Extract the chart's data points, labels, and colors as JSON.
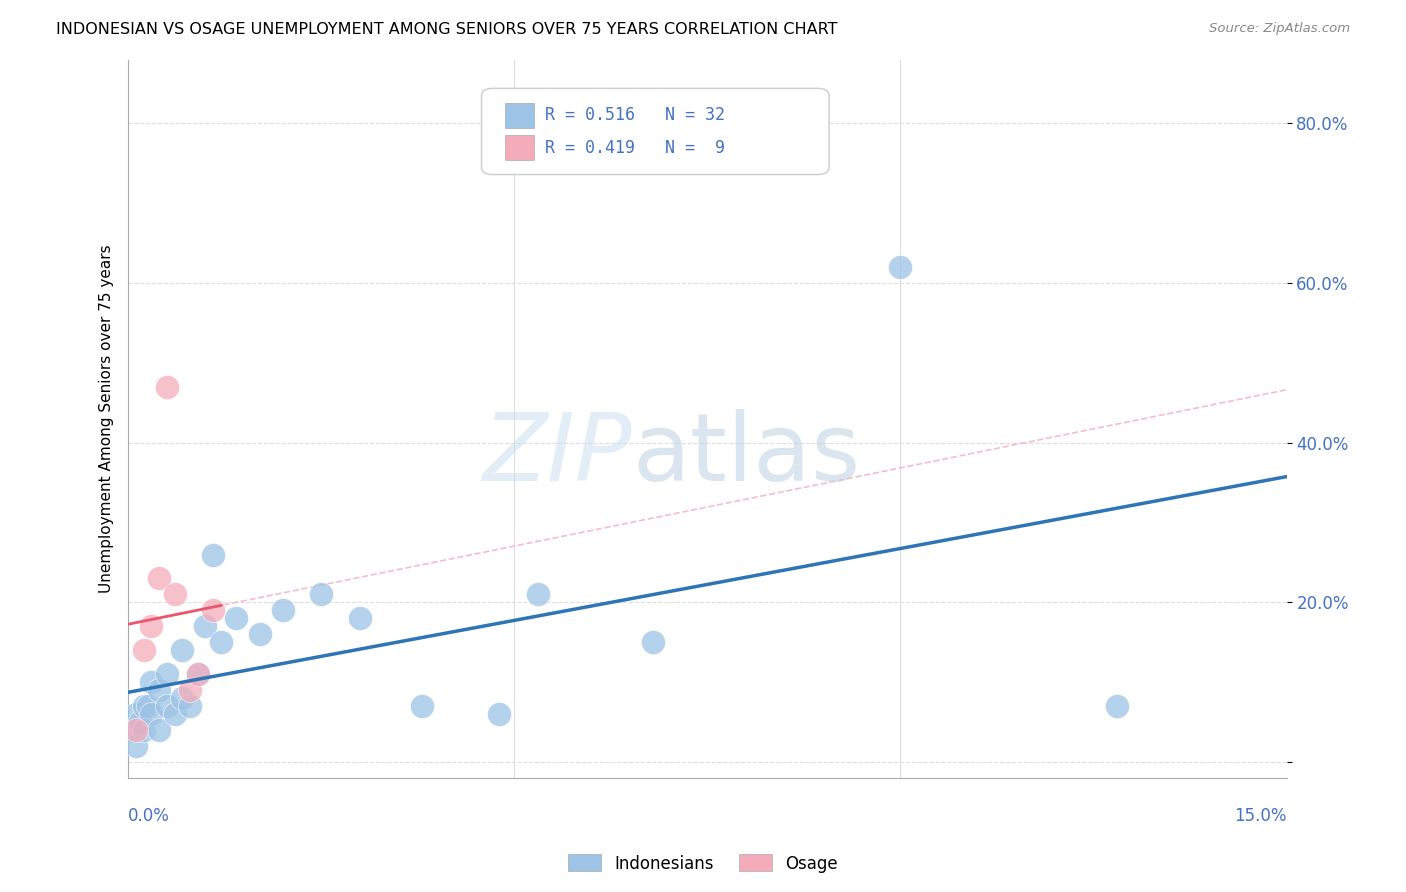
{
  "title": "INDONESIAN VS OSAGE UNEMPLOYMENT AMONG SENIORS OVER 75 YEARS CORRELATION CHART",
  "source": "Source: ZipAtlas.com",
  "ylabel": "Unemployment Among Seniors over 75 years",
  "ytick_vals": [
    0.0,
    0.2,
    0.4,
    0.6,
    0.8
  ],
  "ytick_labels": [
    "",
    "20.0%",
    "40.0%",
    "60.0%",
    "80.0%"
  ],
  "xlim": [
    0.0,
    0.15
  ],
  "ylim": [
    -0.02,
    0.88
  ],
  "indonesian_color": "#9DC3E6",
  "osage_color": "#F4ACBA",
  "indonesian_line_color": "#2E75B6",
  "osage_line_color": "#E8586A",
  "osage_dash_color": "#F4ACBA",
  "indonesian_x": [
    0.0005,
    0.001,
    0.001,
    0.0015,
    0.002,
    0.002,
    0.0025,
    0.003,
    0.003,
    0.004,
    0.004,
    0.005,
    0.005,
    0.006,
    0.007,
    0.007,
    0.008,
    0.009,
    0.01,
    0.011,
    0.012,
    0.014,
    0.017,
    0.02,
    0.025,
    0.03,
    0.038,
    0.048,
    0.053,
    0.068,
    0.1,
    0.128
  ],
  "indonesian_y": [
    0.04,
    0.02,
    0.06,
    0.05,
    0.04,
    0.07,
    0.07,
    0.06,
    0.1,
    0.04,
    0.09,
    0.07,
    0.11,
    0.06,
    0.08,
    0.14,
    0.07,
    0.11,
    0.17,
    0.26,
    0.15,
    0.18,
    0.16,
    0.19,
    0.21,
    0.18,
    0.07,
    0.06,
    0.21,
    0.15,
    0.62,
    0.07
  ],
  "osage_x": [
    0.001,
    0.002,
    0.003,
    0.004,
    0.005,
    0.006,
    0.008,
    0.009,
    0.011
  ],
  "osage_y": [
    0.04,
    0.14,
    0.17,
    0.23,
    0.47,
    0.21,
    0.09,
    0.11,
    0.19
  ],
  "legend_items": [
    {
      "label": "R = 0.516   N = 32",
      "color": "#9DC3E6"
    },
    {
      "label": "R = 0.419   N =  9",
      "color": "#F4ACBA"
    }
  ],
  "bottom_legend": [
    "Indonesians",
    "Osage"
  ]
}
